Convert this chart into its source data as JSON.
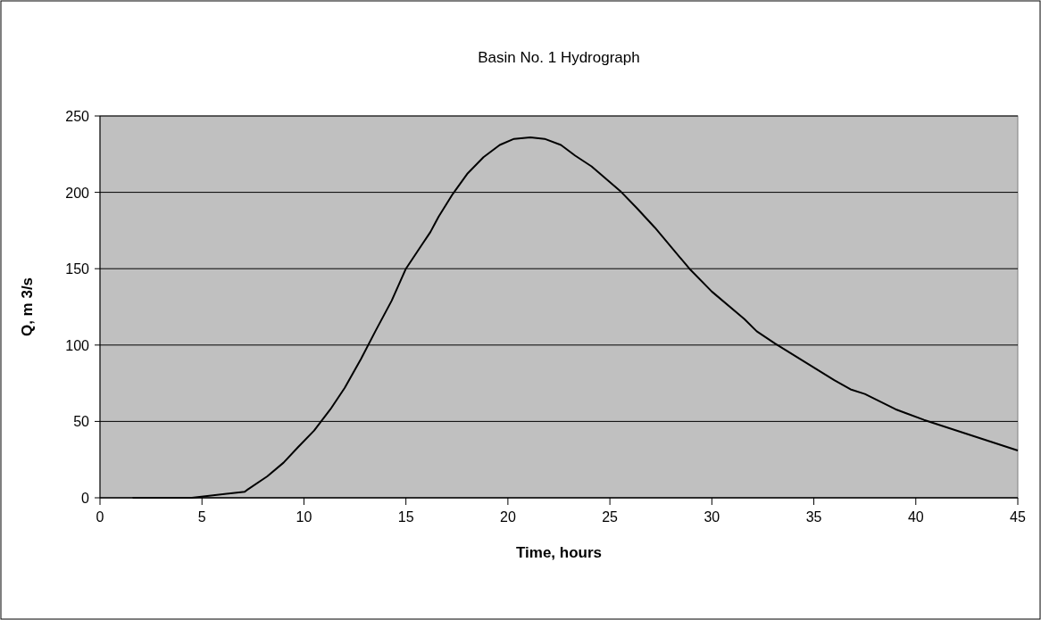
{
  "chart_data": {
    "type": "line",
    "title": "Basin No. 1 Hydrograph",
    "xlabel": "Time, hours",
    "ylabel": "Q, m 3/s",
    "series": [
      {
        "color": "#000000",
        "x": [
          1.6,
          4.5,
          7.1,
          7.2,
          8.2,
          9.0,
          9.7,
          10.5,
          11.3,
          12.0,
          12.8,
          13.5,
          14.3,
          15.0,
          15.8,
          16.2,
          16.6,
          17.3,
          18.0,
          18.8,
          19.6,
          20.3,
          21.1,
          21.8,
          22.6,
          23.3,
          24.1,
          25.5,
          26.3,
          27.2,
          28.9,
          30.0,
          31.6,
          32.2,
          33.1,
          36.0,
          36.8,
          37.5,
          39.0,
          40.4,
          45.0
        ],
        "values": [
          0,
          0,
          4,
          5,
          14,
          23,
          33,
          44,
          58,
          72,
          91,
          109,
          129,
          150,
          166,
          174,
          184,
          199,
          212,
          223,
          231,
          235,
          236,
          235,
          231,
          224,
          217,
          201,
          190,
          177,
          150,
          135,
          117,
          109,
          101,
          77,
          71,
          68,
          58,
          51,
          31
        ]
      }
    ],
    "xlim": [
      0,
      45
    ],
    "xticks": [
      0,
      5,
      10,
      15,
      20,
      25,
      30,
      35,
      40,
      45
    ],
    "ylim": [
      0,
      250
    ],
    "yticks": [
      0,
      50,
      100,
      150,
      200,
      250
    ],
    "grid": "y",
    "marker": "none",
    "line_style": "solid"
  }
}
